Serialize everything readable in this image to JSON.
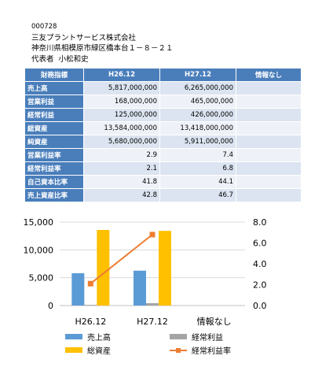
{
  "header": {
    "code": "000728",
    "company": "三友プラントサービス株式会社",
    "address": "神奈川県相模原市緑区橋本台１－８－２１",
    "rep_label": "代表者",
    "rep_name": "小松和史"
  },
  "table": {
    "headers": [
      "財務指標",
      "H26.12",
      "H27.12",
      "情報なし"
    ],
    "rows": [
      {
        "label": "売上高",
        "values": [
          "5,817,000,000",
          "6,265,000,000",
          ""
        ]
      },
      {
        "label": "営業利益",
        "values": [
          "168,000,000",
          "465,000,000",
          ""
        ]
      },
      {
        "label": "経常利益",
        "values": [
          "125,000,000",
          "426,000,000",
          ""
        ]
      },
      {
        "label": "総資産",
        "values": [
          "13,584,000,000",
          "13,418,000,000",
          ""
        ]
      },
      {
        "label": "純資産",
        "values": [
          "5,680,000,000",
          "5,911,000,000",
          ""
        ]
      },
      {
        "label": "営業利益率",
        "values": [
          "2.9",
          "7.4",
          ""
        ]
      },
      {
        "label": "経常利益率",
        "values": [
          "2.1",
          "6.8",
          ""
        ]
      },
      {
        "label": "自己資本比率",
        "values": [
          "41.8",
          "44.1",
          ""
        ]
      },
      {
        "label": "売上資産比率",
        "values": [
          "42.8",
          "46.7",
          ""
        ]
      }
    ]
  },
  "chart_data": {
    "type": "bar",
    "categories": [
      "H26.12",
      "H27.12",
      "情報なし"
    ],
    "series": [
      {
        "name": "売上高",
        "kind": "bar",
        "axis": "left",
        "color": "#5b9bd5",
        "values": [
          5817,
          6265,
          null
        ]
      },
      {
        "name": "経常利益",
        "kind": "bar",
        "axis": "left",
        "color": "#a5a5a5",
        "values": [
          125,
          426,
          null
        ]
      },
      {
        "name": "総資産",
        "kind": "bar",
        "axis": "left",
        "color": "#ffc000",
        "values": [
          13584,
          13418,
          null
        ]
      },
      {
        "name": "経常利益率",
        "kind": "line",
        "axis": "right",
        "color": "#ed7d31",
        "values": [
          2.1,
          6.8,
          null
        ]
      }
    ],
    "left_axis": {
      "min": 0,
      "max": 15000,
      "ticks": [
        "0",
        "5,000",
        "10,000",
        "15,000"
      ],
      "tick_values": [
        0,
        5000,
        10000,
        15000
      ]
    },
    "right_axis": {
      "min": 0,
      "max": 8,
      "ticks": [
        "0.0",
        "2.0",
        "4.0",
        "6.0",
        "8.0"
      ],
      "tick_values": [
        0,
        2,
        4,
        6,
        8
      ]
    },
    "legend_position": "bottom"
  }
}
